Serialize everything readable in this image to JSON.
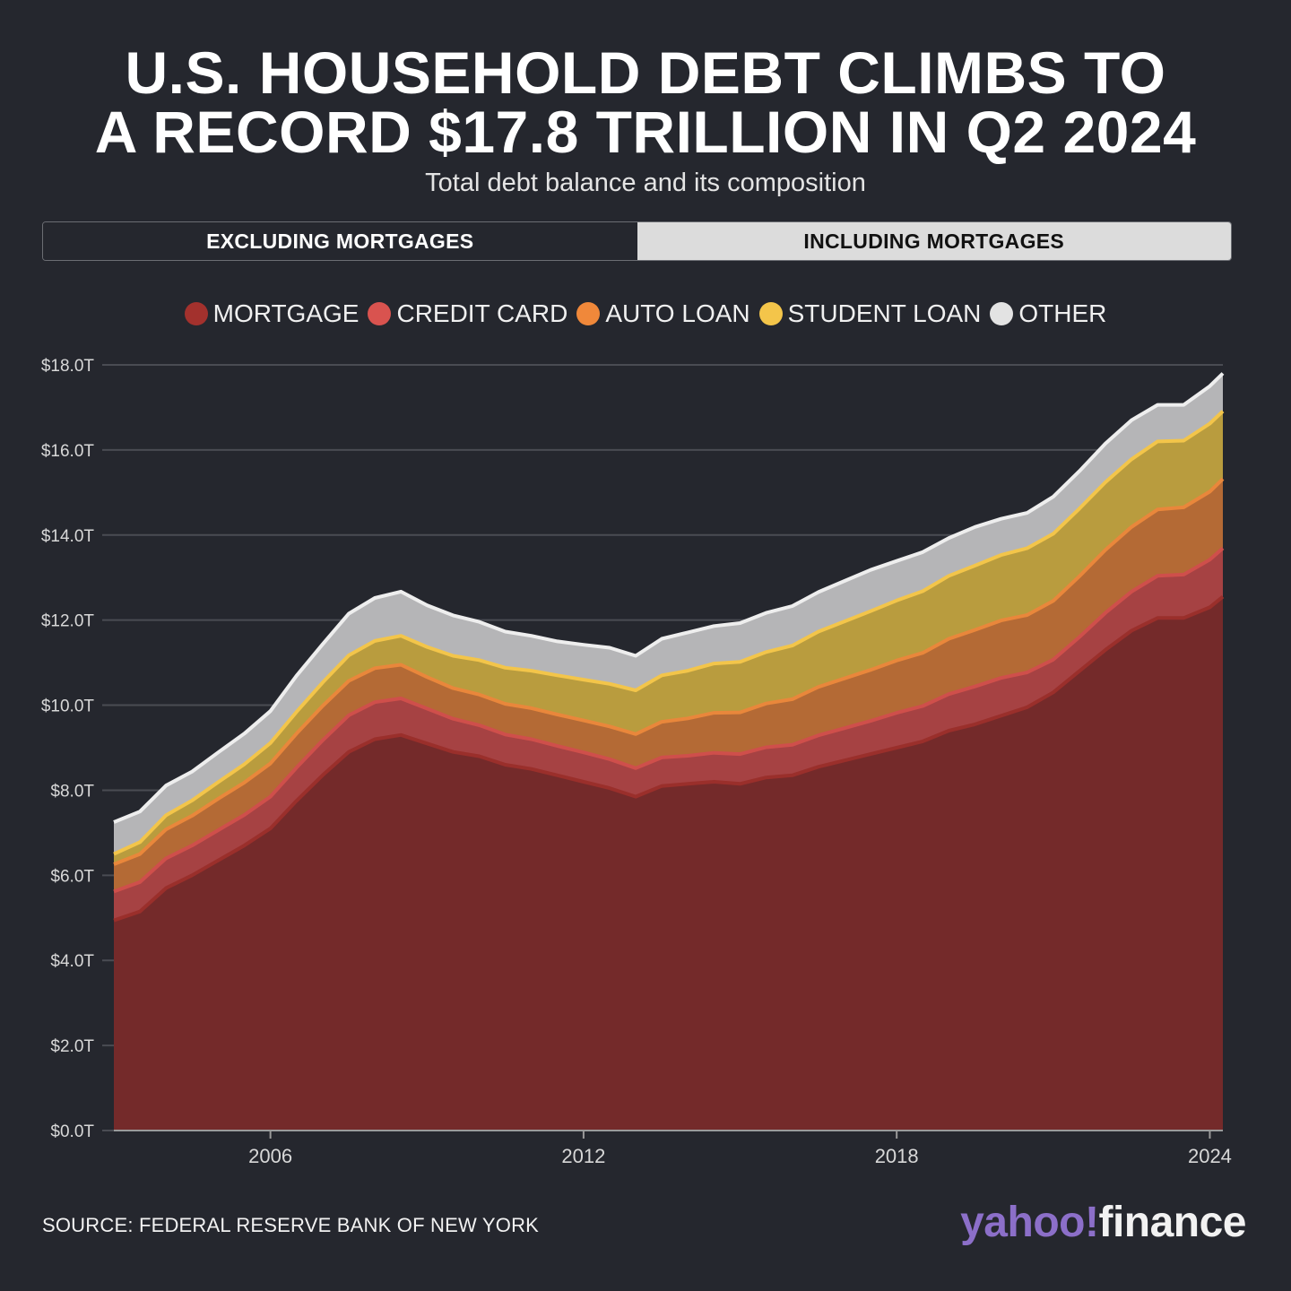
{
  "title": {
    "line1": "U.S. HOUSEHOLD DEBT CLIMBS TO",
    "line2": "A RECORD $17.8 TRILLION IN Q2 2024"
  },
  "subtitle": "Total debt balance and its composition",
  "toggle": {
    "excluding_label": "EXCLUDING MORTGAGES",
    "including_label": "INCLUDING MORTGAGES",
    "selected": "including"
  },
  "legend": [
    {
      "label": "MORTGAGE",
      "color": "#a3312d"
    },
    {
      "label": "CREDIT CARD",
      "color": "#d9534f"
    },
    {
      "label": "AUTO LOAN",
      "color": "#f0883a"
    },
    {
      "label": "STUDENT LOAN",
      "color": "#f4c54a"
    },
    {
      "label": "OTHER",
      "color": "#e3e3e3"
    }
  ],
  "source": "SOURCE: FEDERAL RESERVE BANK OF NEW YORK",
  "logo": {
    "yahoo": "yahoo",
    "mark": "!",
    "finance": "finance"
  },
  "chart_data": {
    "type": "area",
    "stacked": true,
    "title": "U.S. HOUSEHOLD DEBT CLIMBS TO A RECORD $17.8 TRILLION IN Q2 2024",
    "subtitle": "Total debt balance and its composition",
    "xlabel": "",
    "ylabel": "",
    "x_ticks": [
      "2006",
      "2012",
      "2018",
      "2024"
    ],
    "x_range": [
      2003.0,
      2024.25
    ],
    "y_ticks": [
      "$0.0T",
      "$2.0T",
      "$4.0T",
      "$6.0T",
      "$8.0T",
      "$10.0T",
      "$12.0T",
      "$14.0T",
      "$16.0T",
      "$18.0T"
    ],
    "ylim": [
      0,
      18
    ],
    "grid": true,
    "legend_position": "top",
    "x": [
      2003.0,
      2003.5,
      2004.0,
      2004.5,
      2005.0,
      2005.5,
      2006.0,
      2006.5,
      2007.0,
      2007.5,
      2008.0,
      2008.5,
      2009.0,
      2009.5,
      2010.0,
      2010.5,
      2011.0,
      2011.5,
      2012.0,
      2012.5,
      2013.0,
      2013.5,
      2014.0,
      2014.5,
      2015.0,
      2015.5,
      2016.0,
      2016.5,
      2017.0,
      2017.5,
      2018.0,
      2018.5,
      2019.0,
      2019.5,
      2020.0,
      2020.5,
      2021.0,
      2021.5,
      2022.0,
      2022.5,
      2023.0,
      2023.5,
      2024.0,
      2024.25
    ],
    "series": [
      {
        "name": "MORTGAGE",
        "values": [
          4.94,
          5.15,
          5.7,
          6.0,
          6.35,
          6.7,
          7.1,
          7.75,
          8.35,
          8.9,
          9.2,
          9.3,
          9.1,
          8.9,
          8.8,
          8.6,
          8.5,
          8.35,
          8.2,
          8.05,
          7.85,
          8.1,
          8.15,
          8.2,
          8.15,
          8.3,
          8.35,
          8.55,
          8.7,
          8.85,
          9.0,
          9.15,
          9.4,
          9.55,
          9.75,
          9.95,
          10.3,
          10.8,
          11.3,
          11.75,
          12.05,
          12.05,
          12.3,
          12.55
        ]
      },
      {
        "name": "CREDIT CARD",
        "values": [
          0.68,
          0.69,
          0.7,
          0.7,
          0.71,
          0.72,
          0.75,
          0.78,
          0.82,
          0.86,
          0.87,
          0.86,
          0.82,
          0.78,
          0.73,
          0.71,
          0.7,
          0.69,
          0.69,
          0.68,
          0.67,
          0.67,
          0.66,
          0.68,
          0.7,
          0.71,
          0.72,
          0.74,
          0.76,
          0.78,
          0.82,
          0.83,
          0.86,
          0.89,
          0.89,
          0.82,
          0.77,
          0.8,
          0.87,
          0.92,
          0.99,
          1.02,
          1.12,
          1.14
        ]
      },
      {
        "name": "AUTO LOAN",
        "values": [
          0.64,
          0.66,
          0.68,
          0.7,
          0.74,
          0.76,
          0.78,
          0.8,
          0.81,
          0.81,
          0.8,
          0.79,
          0.74,
          0.72,
          0.72,
          0.72,
          0.73,
          0.74,
          0.75,
          0.77,
          0.8,
          0.84,
          0.88,
          0.94,
          0.98,
          1.03,
          1.07,
          1.14,
          1.17,
          1.2,
          1.23,
          1.25,
          1.3,
          1.33,
          1.35,
          1.35,
          1.38,
          1.43,
          1.48,
          1.52,
          1.56,
          1.58,
          1.6,
          1.63
        ]
      },
      {
        "name": "STUDENT LOAN",
        "values": [
          0.24,
          0.28,
          0.33,
          0.36,
          0.39,
          0.43,
          0.48,
          0.51,
          0.55,
          0.6,
          0.64,
          0.68,
          0.71,
          0.76,
          0.81,
          0.85,
          0.88,
          0.92,
          0.96,
          1.0,
          1.03,
          1.09,
          1.12,
          1.16,
          1.19,
          1.21,
          1.26,
          1.3,
          1.34,
          1.38,
          1.41,
          1.45,
          1.48,
          1.51,
          1.54,
          1.57,
          1.58,
          1.59,
          1.59,
          1.59,
          1.6,
          1.57,
          1.6,
          1.59
        ]
      },
      {
        "name": "OTHER",
        "values": [
          0.75,
          0.72,
          0.7,
          0.68,
          0.7,
          0.72,
          0.75,
          0.85,
          0.9,
          0.98,
          1.01,
          1.04,
          0.98,
          0.95,
          0.9,
          0.85,
          0.82,
          0.8,
          0.82,
          0.85,
          0.81,
          0.86,
          0.9,
          0.88,
          0.91,
          0.92,
          0.93,
          0.93,
          0.95,
          0.97,
          0.93,
          0.92,
          0.89,
          0.91,
          0.85,
          0.83,
          0.87,
          0.88,
          0.91,
          0.92,
          0.86,
          0.84,
          0.88,
          0.89
        ]
      }
    ]
  }
}
